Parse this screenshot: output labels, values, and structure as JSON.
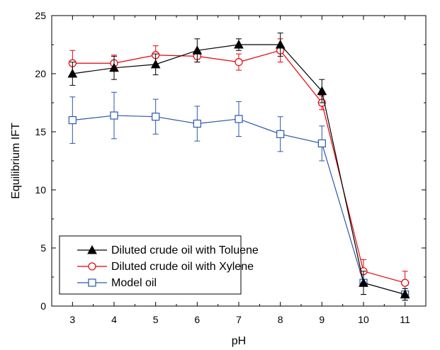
{
  "chart_data": {
    "type": "line",
    "xlabel": "pH",
    "ylabel": "Equilibrium IFT",
    "xlim": [
      2.5,
      11.5
    ],
    "ylim": [
      0,
      25
    ],
    "x_ticks": [
      3,
      4,
      5,
      6,
      7,
      8,
      9,
      10,
      11
    ],
    "y_ticks": [
      0,
      5,
      10,
      15,
      20,
      25
    ],
    "x_tick_labels": [
      "3",
      "4",
      "5",
      "6",
      "7",
      "8",
      "9",
      "10",
      "11"
    ],
    "y_tick_labels": [
      "0",
      "5",
      "10",
      "15",
      "20",
      "25"
    ],
    "legend_position": "bottom-left",
    "grid": false,
    "x": [
      3,
      4,
      5,
      6,
      7,
      8,
      9,
      10,
      11
    ],
    "series": [
      {
        "name": "Diluted crude oil with Toluene",
        "color": "#000000",
        "marker": "filled-triangle",
        "values": [
          20.0,
          20.5,
          20.8,
          22.0,
          22.5,
          22.5,
          18.5,
          2.0,
          1.0
        ],
        "errors": [
          1.0,
          1.0,
          0.9,
          1.0,
          0.5,
          1.0,
          1.0,
          1.0,
          0.5
        ]
      },
      {
        "name": "Diluted crude oil with Xylene",
        "color": "#e8000b",
        "marker": "open-circle",
        "values": [
          20.9,
          20.9,
          21.6,
          21.5,
          21.0,
          22.0,
          17.5,
          3.0,
          2.0
        ],
        "errors": [
          1.1,
          0.7,
          0.8,
          0.5,
          0.7,
          1.0,
          0.6,
          1.0,
          1.0
        ]
      },
      {
        "name": "Model oil",
        "color": "#2b57ad",
        "marker": "open-square",
        "values": [
          16.0,
          16.4,
          16.3,
          15.7,
          16.1,
          14.8,
          14.0,
          2.0,
          1.0
        ],
        "errors": [
          2.0,
          2.0,
          1.5,
          1.5,
          1.5,
          1.5,
          1.5,
          1.0,
          0.5
        ]
      }
    ]
  }
}
